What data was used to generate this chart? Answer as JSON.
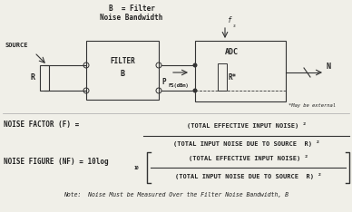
{
  "bg_color": "#f0efe8",
  "text_color": "#222222",
  "line_color": "#333333",
  "circuit": {
    "source_label": "SOURCE",
    "r_label": "R",
    "filter_label": "FILTER",
    "filter_b_label": "B",
    "b_eq_line1": "B  = Filter",
    "b_eq_line2": "Noise Bandwidth",
    "p_label": "P",
    "p_sub": "FS(dBm)",
    "adc_label": "ADC",
    "r_star_label": "R*",
    "n_label": "N",
    "fs_label": "f",
    "fs_sub": "s",
    "may_be_label": "*May be external"
  },
  "formulas": {
    "nf_label": "NOISE FACTOR (F) =",
    "nf_num": "(TOTAL EFFECTIVE INPUT NOISE) ²",
    "nf_den": "(TOTAL INPUT NOISE DUE TO SOURCE  R) ²",
    "nfig_label": "NOISE FIGURE (NF) = 10log",
    "nfig_sub": "10",
    "nfig_num": "(TOTAL EFFECTIVE INPUT NOISE) ²",
    "nfig_den": "(TOTAL INPUT NOISE DUE TO SOURCE  R) ²",
    "note": "Note:  Noise Must be Measured Over the Filter Noise Bandwidth, B"
  },
  "font_size_small": 5.5,
  "font_size_med": 6.0,
  "font_size_large": 7.0
}
